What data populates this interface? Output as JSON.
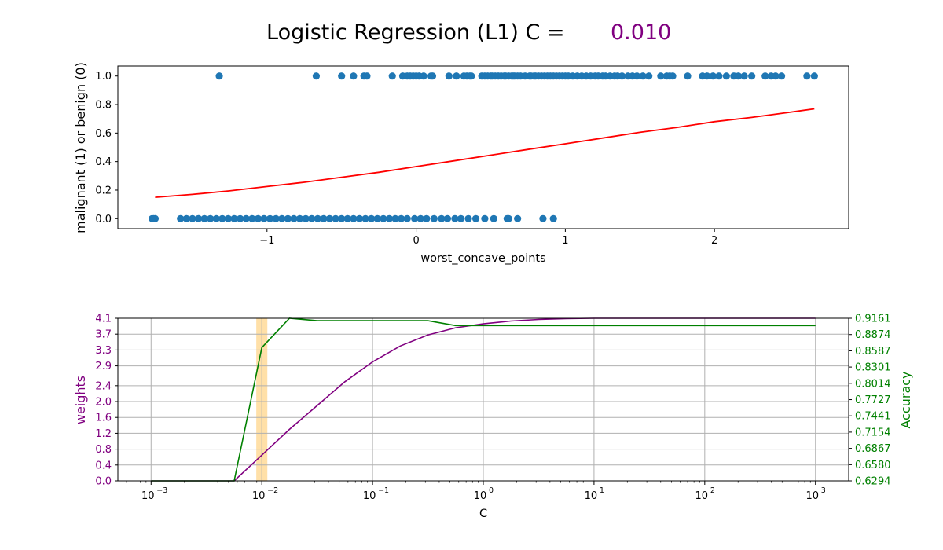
{
  "title": {
    "prefix": "Logistic Regression (L1) C =",
    "value": "0.010",
    "value_color": "#800080"
  },
  "colors": {
    "scatter": "#1f77b4",
    "logistic_curve": "#ff0000",
    "weights_line": "#800080",
    "accuracy_line": "#008000",
    "highlight_band": "#ffe0a8"
  },
  "chart_data": [
    {
      "type": "scatter",
      "xlabel": "worst_concave_points",
      "ylabel": "malignant (1) or benign (0)",
      "xlim": [
        -2.0,
        2.9
      ],
      "ylim": [
        -0.07,
        1.07
      ],
      "x_ticks": [
        -1,
        0,
        1,
        2
      ],
      "x_tick_labels": [
        "−1",
        "0",
        "1",
        "2"
      ],
      "y_ticks": [
        0.0,
        0.2,
        0.4,
        0.6,
        0.8,
        1.0
      ],
      "y_tick_labels": [
        "0.0",
        "0.2",
        "0.4",
        "0.6",
        "0.8",
        "1.0"
      ],
      "points_malignant_y1": [
        -1.32,
        -0.67,
        -0.5,
        -0.42,
        -0.35,
        -0.33,
        -0.16,
        -0.09,
        -0.06,
        -0.04,
        -0.02,
        0.0,
        0.02,
        0.05,
        0.1,
        0.11,
        0.22,
        0.27,
        0.32,
        0.34,
        0.36,
        0.37,
        0.44,
        0.46,
        0.48,
        0.5,
        0.51,
        0.53,
        0.55,
        0.57,
        0.59,
        0.6,
        0.62,
        0.64,
        0.65,
        0.66,
        0.68,
        0.7,
        0.73,
        0.76,
        0.77,
        0.79,
        0.8,
        0.82,
        0.84,
        0.86,
        0.88,
        0.9,
        0.92,
        0.94,
        0.96,
        0.98,
        1.0,
        1.02,
        1.05,
        1.08,
        1.11,
        1.14,
        1.17,
        1.2,
        1.22,
        1.25,
        1.27,
        1.3,
        1.33,
        1.35,
        1.38,
        1.42,
        1.45,
        1.48,
        1.52,
        1.56,
        1.64,
        1.68,
        1.7,
        1.72,
        1.82,
        1.92,
        1.95,
        1.99,
        2.03,
        2.08,
        2.13,
        2.16,
        2.2,
        2.25,
        2.34,
        2.38,
        2.41,
        2.45,
        2.62,
        2.67
      ],
      "points_benign_y0": [
        -1.77,
        -1.76,
        -1.75,
        -1.58,
        -1.54,
        -1.5,
        -1.46,
        -1.42,
        -1.38,
        -1.34,
        -1.3,
        -1.26,
        -1.22,
        -1.18,
        -1.14,
        -1.1,
        -1.06,
        -1.02,
        -0.98,
        -0.94,
        -0.9,
        -0.86,
        -0.82,
        -0.78,
        -0.74,
        -0.7,
        -0.66,
        -0.62,
        -0.58,
        -0.54,
        -0.5,
        -0.46,
        -0.42,
        -0.38,
        -0.34,
        -0.3,
        -0.26,
        -0.22,
        -0.18,
        -0.14,
        -0.1,
        -0.06,
        -0.01,
        0.03,
        0.07,
        0.12,
        0.17,
        0.21,
        0.26,
        0.3,
        0.35,
        0.4,
        0.46,
        0.52,
        0.61,
        0.62,
        0.68,
        0.85,
        0.92
      ],
      "curve": {
        "x": [
          -1.75,
          -1.5,
          -1.25,
          -1.0,
          -0.75,
          -0.5,
          -0.25,
          0.0,
          0.25,
          0.5,
          0.75,
          1.0,
          1.25,
          1.5,
          1.75,
          2.0,
          2.25,
          2.5,
          2.67
        ],
        "y": [
          0.15,
          0.17,
          0.195,
          0.225,
          0.255,
          0.29,
          0.325,
          0.365,
          0.405,
          0.445,
          0.485,
          0.525,
          0.565,
          0.605,
          0.64,
          0.68,
          0.71,
          0.745,
          0.77
        ]
      }
    },
    {
      "type": "line",
      "xscale": "log",
      "xlabel": "C",
      "ylabel_left": "weights",
      "ylabel_right": "Accuracy",
      "xlim": [
        -3.3,
        3.3
      ],
      "x_ticks": [
        -3,
        -2,
        -1,
        0,
        1,
        2,
        3
      ],
      "x_tick_base": "10",
      "y_left_lim": [
        0.0,
        4.1
      ],
      "y_left_ticks": [
        0.0,
        0.4,
        0.8,
        1.2,
        1.6,
        2.0,
        2.4,
        2.9,
        3.3,
        3.7,
        4.1
      ],
      "y_left_tick_labels": [
        "0.0",
        "0.4",
        "0.8",
        "1.2",
        "1.6",
        "2.0",
        "2.4",
        "2.9",
        "3.3",
        "3.7",
        "4.1"
      ],
      "y_right_lim": [
        0.6294,
        0.9161
      ],
      "y_right_ticks": [
        0.6294,
        0.658,
        0.6867,
        0.7154,
        0.7441,
        0.7727,
        0.8014,
        0.8301,
        0.8587,
        0.8874,
        0.9161
      ],
      "y_right_tick_labels": [
        "0.6294",
        "0.6580",
        "0.6867",
        "0.7154",
        "0.7441",
        "0.7727",
        "0.8014",
        "0.8301",
        "0.8587",
        "0.8874",
        "0.9161"
      ],
      "grid": true,
      "highlight_C": 0.01,
      "highlight_log_range": [
        -2.05,
        -1.95
      ],
      "series": [
        {
          "axis": "left",
          "log10_C": [
            -3.0,
            -2.25,
            -2.0,
            -1.75,
            -1.5,
            -1.25,
            -1.0,
            -0.75,
            -0.5,
            -0.25,
            0.0,
            0.25,
            0.5,
            0.75,
            1.0,
            2.0,
            3.0
          ],
          "values": [
            0.0,
            0.0,
            0.65,
            1.3,
            1.9,
            2.5,
            3.0,
            3.4,
            3.68,
            3.86,
            3.96,
            4.03,
            4.07,
            4.09,
            4.1,
            4.1,
            4.1
          ]
        },
        {
          "axis": "right",
          "log10_C": [
            -3.0,
            -2.25,
            -2.0,
            -1.75,
            -1.5,
            -0.5,
            -0.25,
            0.0,
            3.0
          ],
          "values": [
            0.6294,
            0.6294,
            0.8645,
            0.9161,
            0.9118,
            0.9118,
            0.9032,
            0.9032,
            0.9032
          ]
        }
      ]
    }
  ]
}
